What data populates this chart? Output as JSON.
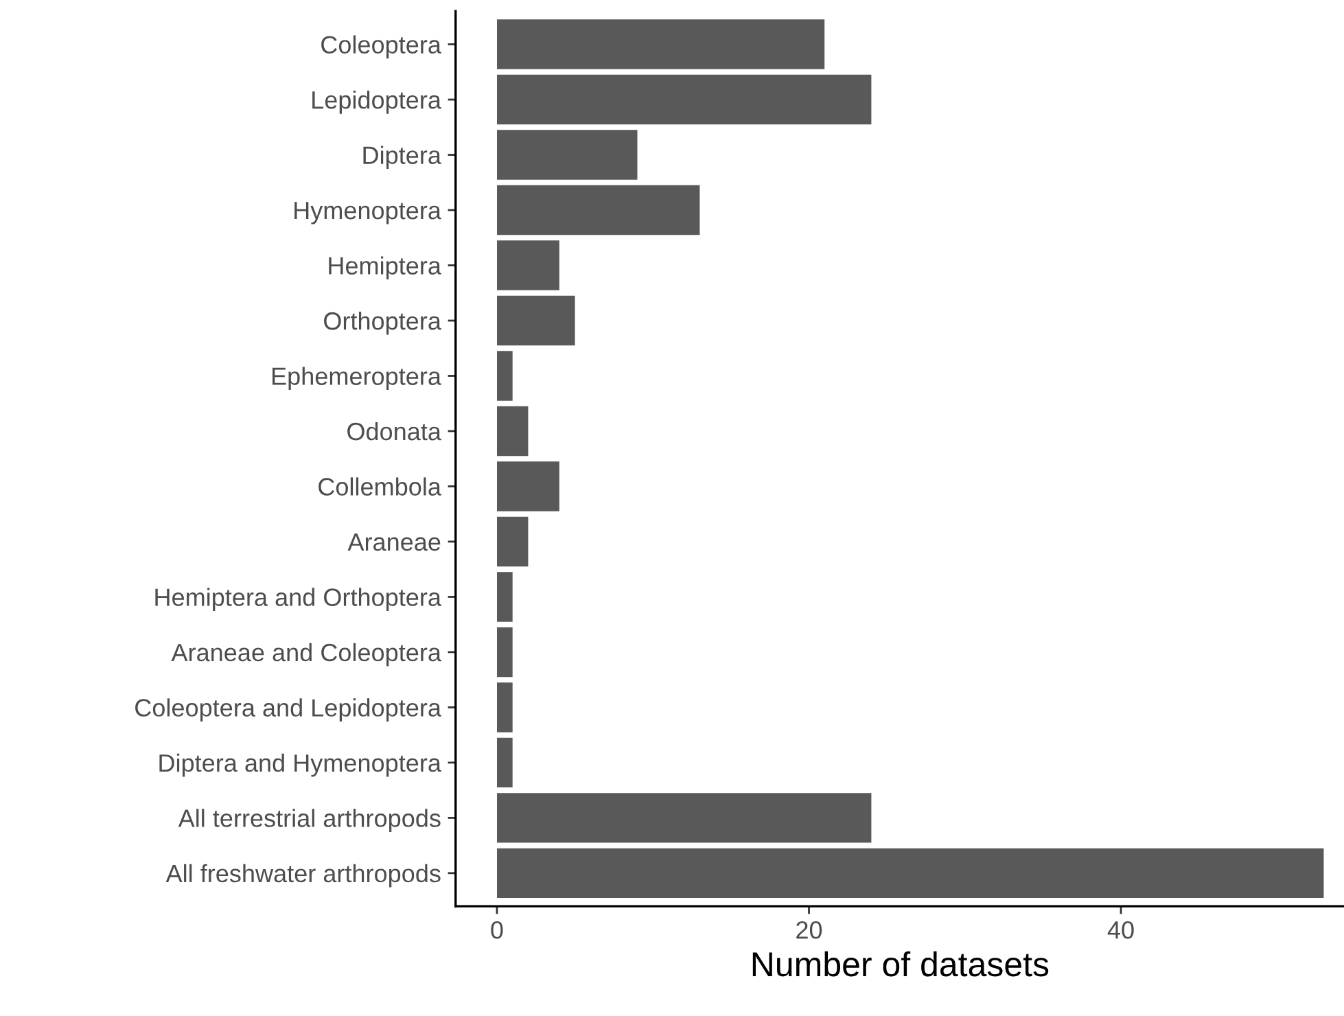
{
  "chart_data": {
    "type": "bar",
    "orientation": "horizontal",
    "xlabel": "Number of datasets",
    "categories": [
      "Coleoptera",
      "Lepidoptera",
      "Diptera",
      "Hymenoptera",
      "Hemiptera",
      "Orthoptera",
      "Ephemeroptera",
      "Odonata",
      "Collembola",
      "Araneae",
      "Hemiptera and Orthoptera",
      "Araneae and Coleoptera",
      "Coleoptera and Lepidoptera",
      "Diptera and Hymenoptera",
      "All terrestrial arthropods",
      "All freshwater arthropods"
    ],
    "values": [
      21,
      24,
      9,
      13,
      4,
      5,
      1,
      2,
      4,
      2,
      1,
      1,
      1,
      1,
      24,
      53
    ],
    "color": "#595959",
    "xlim": [
      -2.65,
      54.3
    ],
    "xticks": [
      0,
      20,
      40
    ],
    "grid": false,
    "legend": false
  }
}
